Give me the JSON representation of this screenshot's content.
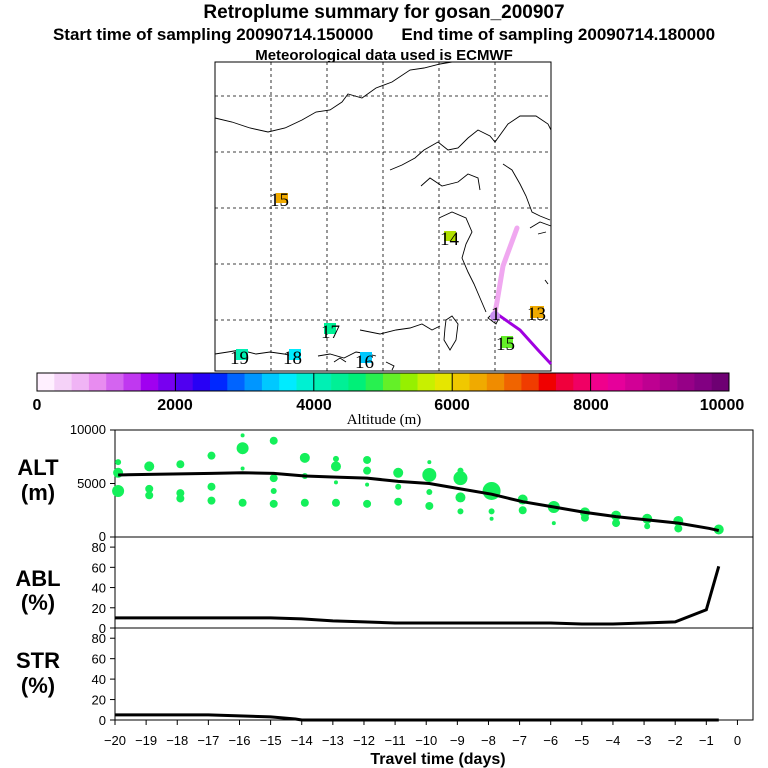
{
  "titles": {
    "line1": "Retroplume summary for gosan_200907",
    "start": "Start time of sampling 20090714.150000",
    "end": "End time of sampling 20090714.180000",
    "met": "Meteorological data used is ECMWF"
  },
  "map": {
    "labels": [
      "15",
      "14",
      "13",
      "15",
      "17",
      "19",
      "18",
      "16",
      "1"
    ]
  },
  "colorbar": {
    "tick_labels": [
      "0",
      "2000",
      "4000",
      "6000",
      "8000",
      "10000"
    ],
    "title": "Altitude (m)",
    "colors": [
      "#fff0ff",
      "#f5d2f8",
      "#f0b4f5",
      "#e88cf0",
      "#d464f0",
      "#c038f0",
      "#a000f0",
      "#7800f0",
      "#5000f0",
      "#2800f5",
      "#0028ff",
      "#0064ff",
      "#0096ff",
      "#00c8ff",
      "#00ebff",
      "#00f0d2",
      "#00f0b4",
      "#00f096",
      "#00f078",
      "#28f050",
      "#64f028",
      "#96f000",
      "#c8f000",
      "#e6e600",
      "#f0c800",
      "#f0aa00",
      "#f08c00",
      "#f06400",
      "#f03c00",
      "#f00000",
      "#f0003c",
      "#f00064",
      "#f0008c",
      "#e6009b",
      "#d20096",
      "#be0091",
      "#aa008c",
      "#960087",
      "#820082",
      "#6e0073"
    ]
  },
  "chart_data": [
    {
      "type": "line",
      "name": "ALT",
      "ylabel": [
        "ALT",
        "(m)"
      ],
      "ylim": [
        0,
        10000
      ],
      "yticks": [
        "10000",
        "5000",
        "0"
      ],
      "x": [
        -19.9,
        -18.9,
        -17.9,
        -16.9,
        -15.9,
        -14.9,
        -13.9,
        -12.9,
        -11.9,
        -10.9,
        -9.9,
        -8.9,
        -7.9,
        -6.9,
        -5.9,
        -4.9,
        -3.9,
        -2.9,
        -1.9,
        -0.9,
        -0.6
      ],
      "values": [
        5800,
        5850,
        5900,
        5950,
        6000,
        5950,
        5700,
        5600,
        5500,
        5200,
        5000,
        4500,
        4000,
        3300,
        2800,
        2300,
        1900,
        1600,
        1300,
        800,
        600
      ],
      "scatter": [
        {
          "x": -19.9,
          "y": 7000,
          "s": 3
        },
        {
          "x": -19.9,
          "y": 6000,
          "s": 5
        },
        {
          "x": -19.9,
          "y": 4300,
          "s": 6
        },
        {
          "x": -18.9,
          "y": 6600,
          "s": 5
        },
        {
          "x": -18.9,
          "y": 4500,
          "s": 4
        },
        {
          "x": -18.9,
          "y": 3900,
          "s": 4
        },
        {
          "x": -17.9,
          "y": 6800,
          "s": 4
        },
        {
          "x": -17.9,
          "y": 4100,
          "s": 4
        },
        {
          "x": -17.9,
          "y": 3600,
          "s": 4
        },
        {
          "x": -16.9,
          "y": 7600,
          "s": 4
        },
        {
          "x": -16.9,
          "y": 4700,
          "s": 4
        },
        {
          "x": -16.9,
          "y": 3400,
          "s": 4
        },
        {
          "x": -15.9,
          "y": 9500,
          "s": 2
        },
        {
          "x": -15.9,
          "y": 8300,
          "s": 6
        },
        {
          "x": -15.9,
          "y": 6400,
          "s": 2
        },
        {
          "x": -15.9,
          "y": 3200,
          "s": 4
        },
        {
          "x": -14.9,
          "y": 9000,
          "s": 4
        },
        {
          "x": -14.9,
          "y": 5500,
          "s": 4
        },
        {
          "x": -14.9,
          "y": 4300,
          "s": 3
        },
        {
          "x": -14.9,
          "y": 3100,
          "s": 4
        },
        {
          "x": -13.9,
          "y": 7400,
          "s": 5
        },
        {
          "x": -13.9,
          "y": 5700,
          "s": 3
        },
        {
          "x": -13.9,
          "y": 3200,
          "s": 4
        },
        {
          "x": -12.9,
          "y": 7300,
          "s": 3
        },
        {
          "x": -12.9,
          "y": 6600,
          "s": 5
        },
        {
          "x": -12.9,
          "y": 5100,
          "s": 2
        },
        {
          "x": -12.9,
          "y": 3200,
          "s": 4
        },
        {
          "x": -11.9,
          "y": 7200,
          "s": 4
        },
        {
          "x": -11.9,
          "y": 6200,
          "s": 4
        },
        {
          "x": -11.9,
          "y": 4900,
          "s": 2
        },
        {
          "x": -11.9,
          "y": 3100,
          "s": 4
        },
        {
          "x": -10.9,
          "y": 6000,
          "s": 5
        },
        {
          "x": -10.9,
          "y": 4700,
          "s": 3
        },
        {
          "x": -10.9,
          "y": 3300,
          "s": 4
        },
        {
          "x": -9.9,
          "y": 7000,
          "s": 2
        },
        {
          "x": -9.9,
          "y": 5800,
          "s": 7
        },
        {
          "x": -9.9,
          "y": 4200,
          "s": 3
        },
        {
          "x": -9.9,
          "y": 2900,
          "s": 4
        },
        {
          "x": -8.9,
          "y": 6200,
          "s": 3
        },
        {
          "x": -8.9,
          "y": 5500,
          "s": 7
        },
        {
          "x": -8.9,
          "y": 3700,
          "s": 5
        },
        {
          "x": -8.9,
          "y": 2400,
          "s": 3
        },
        {
          "x": -7.9,
          "y": 4300,
          "s": 9
        },
        {
          "x": -7.9,
          "y": 2400,
          "s": 3
        },
        {
          "x": -7.9,
          "y": 1700,
          "s": 2
        },
        {
          "x": -6.9,
          "y": 3500,
          "s": 5
        },
        {
          "x": -6.9,
          "y": 2500,
          "s": 4
        },
        {
          "x": -5.9,
          "y": 2800,
          "s": 6
        },
        {
          "x": -5.9,
          "y": 1300,
          "s": 2
        },
        {
          "x": -4.9,
          "y": 2300,
          "s": 5
        },
        {
          "x": -4.9,
          "y": 1800,
          "s": 4
        },
        {
          "x": -3.9,
          "y": 2000,
          "s": 5
        },
        {
          "x": -3.9,
          "y": 1300,
          "s": 4
        },
        {
          "x": -2.9,
          "y": 1700,
          "s": 5
        },
        {
          "x": -2.9,
          "y": 1000,
          "s": 3
        },
        {
          "x": -1.9,
          "y": 1500,
          "s": 5
        },
        {
          "x": -1.9,
          "y": 800,
          "s": 4
        },
        {
          "x": -0.6,
          "y": 700,
          "s": 5
        },
        {
          "x": -0.6,
          "y": 600,
          "s": 3
        }
      ]
    },
    {
      "type": "line",
      "name": "ABL",
      "ylabel": [
        "ABL",
        "(%)"
      ],
      "ylim": [
        0,
        90
      ],
      "yticks": [
        "80",
        "60",
        "40",
        "20",
        "0"
      ],
      "x": [
        -20,
        -19,
        -18,
        -17,
        -16,
        -15,
        -14,
        -13,
        -12,
        -11,
        -10,
        -9,
        -8,
        -7,
        -6,
        -5,
        -4,
        -3,
        -2,
        -1,
        -0.6
      ],
      "values": [
        10,
        10,
        10,
        10,
        10,
        10,
        9,
        7,
        6,
        5,
        5,
        5,
        5,
        5,
        5,
        4,
        4,
        5,
        6,
        18,
        61
      ]
    },
    {
      "type": "line",
      "name": "STR",
      "ylabel": [
        "STR",
        "(%)"
      ],
      "ylim": [
        0,
        90
      ],
      "yticks": [
        "80",
        "60",
        "40",
        "20",
        "0"
      ],
      "xlabel": "Travel time (days)",
      "xticks": [
        "−20",
        "−19",
        "−18",
        "−17",
        "−16",
        "−15",
        "−14",
        "−13",
        "−12",
        "−11",
        "−10",
        "−9",
        "−8",
        "−7",
        "−6",
        "−5",
        "−4",
        "−3",
        "−2",
        "−1",
        "0"
      ],
      "x": [
        -20,
        -19,
        -18,
        -17,
        -16,
        -15,
        -14.2,
        -14,
        -13,
        -12,
        -11,
        -10,
        -9,
        -8,
        -7,
        -6,
        -5,
        -4,
        -3,
        -2,
        -1,
        -0.6
      ],
      "values": [
        5,
        5,
        5,
        5,
        4,
        3,
        1,
        0,
        0,
        0,
        0,
        0,
        0,
        0,
        0,
        0,
        0,
        0,
        0,
        0,
        0,
        0
      ]
    }
  ]
}
